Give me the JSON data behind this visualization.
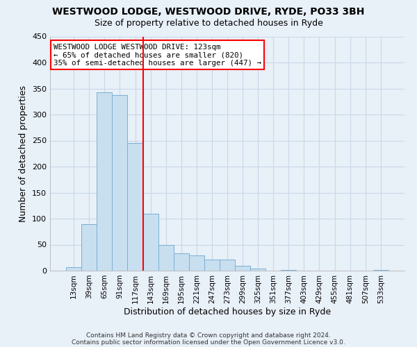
{
  "title": "WESTWOOD LODGE, WESTWOOD DRIVE, RYDE, PO33 3BH",
  "subtitle": "Size of property relative to detached houses in Ryde",
  "xlabel": "Distribution of detached houses by size in Ryde",
  "ylabel": "Number of detached properties",
  "footer_line1": "Contains HM Land Registry data © Crown copyright and database right 2024.",
  "footer_line2": "Contains public sector information licensed under the Open Government Licence v3.0.",
  "bar_labels": [
    "13sqm",
    "39sqm",
    "65sqm",
    "91sqm",
    "117sqm",
    "143sqm",
    "169sqm",
    "195sqm",
    "221sqm",
    "247sqm",
    "273sqm",
    "299sqm",
    "325sqm",
    "351sqm",
    "377sqm",
    "403sqm",
    "429sqm",
    "455sqm",
    "481sqm",
    "507sqm",
    "533sqm"
  ],
  "bar_values": [
    7,
    90,
    343,
    337,
    246,
    110,
    49,
    33,
    29,
    22,
    21,
    10,
    4,
    0,
    1,
    0,
    0,
    0,
    0,
    0,
    1
  ],
  "bar_color": "#c8dff0",
  "bar_edge_color": "#7bafd4",
  "ylim": [
    0,
    450
  ],
  "yticks": [
    0,
    50,
    100,
    150,
    200,
    250,
    300,
    350,
    400,
    450
  ],
  "marker_color": "red",
  "annotation_title": "WESTWOOD LODGE WESTWOOD DRIVE: 123sqm",
  "annotation_line2": "← 65% of detached houses are smaller (820)",
  "annotation_line3": "35% of semi-detached houses are larger (447) →",
  "annotation_box_color": "#ffffff",
  "annotation_border_color": "red",
  "grid_color": "#c8d8e8",
  "background_color": "#e8f0f8"
}
